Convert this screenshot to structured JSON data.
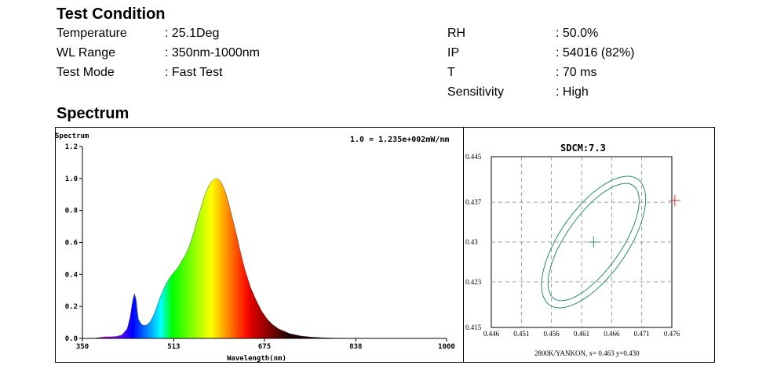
{
  "test_condition": {
    "heading": "Test Condition",
    "left": [
      {
        "label": "Temperature",
        "value": ": 25.1Deg"
      },
      {
        "label": "WL Range",
        "value": ": 350nm-1000nm"
      },
      {
        "label": "Test Mode",
        "value": ": Fast Test"
      }
    ],
    "right": [
      {
        "label": "RH",
        "value": ": 50.0%"
      },
      {
        "label": "IP",
        "value": ": 54016 (82%)"
      },
      {
        "label": "T",
        "value": ": 70 ms"
      },
      {
        "label": "Sensitivity",
        "value": ": High"
      }
    ]
  },
  "spectrum_heading": "Spectrum",
  "chart_data": [
    {
      "type": "area",
      "ylabel": "Spectrum",
      "xlabel": "Wavelength(nm)",
      "scale_note": "1.0 = 1.235e+002mW/nm",
      "xlim": [
        350,
        1000
      ],
      "ylim": [
        0,
        1.2
      ],
      "xticks": [
        "350",
        "513",
        "675",
        "838",
        "1000"
      ],
      "yticks": [
        "0.0",
        "0.2",
        "0.4",
        "0.6",
        "0.8",
        "1.0",
        "1.2"
      ],
      "grid": false,
      "series": [
        {
          "x": [
            350,
            370,
            390,
            400,
            410,
            420,
            430,
            435,
            440,
            443,
            446,
            448,
            450,
            455,
            460,
            465,
            470,
            475,
            480,
            485,
            490,
            495,
            500,
            505,
            510,
            515,
            520,
            525,
            530,
            535,
            540,
            545,
            550,
            555,
            560,
            565,
            570,
            575,
            580,
            585,
            590,
            595,
            600,
            605,
            610,
            615,
            620,
            625,
            630,
            640,
            650,
            660,
            670,
            680,
            690,
            700,
            720,
            740,
            760,
            780,
            800,
            850,
            900,
            950,
            1000
          ],
          "values": [
            0.0,
            0.0,
            0.01,
            0.01,
            0.012,
            0.02,
            0.06,
            0.13,
            0.24,
            0.28,
            0.24,
            0.17,
            0.12,
            0.09,
            0.08,
            0.085,
            0.1,
            0.13,
            0.17,
            0.22,
            0.27,
            0.31,
            0.345,
            0.375,
            0.4,
            0.42,
            0.44,
            0.47,
            0.5,
            0.53,
            0.57,
            0.62,
            0.68,
            0.74,
            0.8,
            0.86,
            0.91,
            0.95,
            0.98,
            0.995,
            1.0,
            0.99,
            0.96,
            0.92,
            0.86,
            0.79,
            0.72,
            0.65,
            0.57,
            0.43,
            0.32,
            0.24,
            0.17,
            0.12,
            0.085,
            0.06,
            0.03,
            0.015,
            0.008,
            0.004,
            0.002,
            0.0,
            0.0,
            0.0,
            0.0
          ]
        }
      ]
    },
    {
      "type": "scatter",
      "title": "SDCM:7.3",
      "caption": "2800K/YANKON,  x= 0.463  y=0.430",
      "xlim": [
        0.446,
        0.476
      ],
      "ylim": [
        0.415,
        0.445
      ],
      "xticks": [
        "0.446",
        "0.451",
        "0.456",
        "0.461",
        "0.466",
        "0.471",
        "0.476"
      ],
      "yticks": [
        "0.445",
        "0.437",
        "0.43",
        "0.423",
        "0.415"
      ],
      "grid": true,
      "center_point": {
        "x": 0.463,
        "y": 0.43,
        "color": "#2e8b7a"
      },
      "measured_point": {
        "x": 0.4765,
        "y": 0.4373,
        "color": "#e03030"
      },
      "ellipse_color": "#2e8b7a"
    }
  ]
}
